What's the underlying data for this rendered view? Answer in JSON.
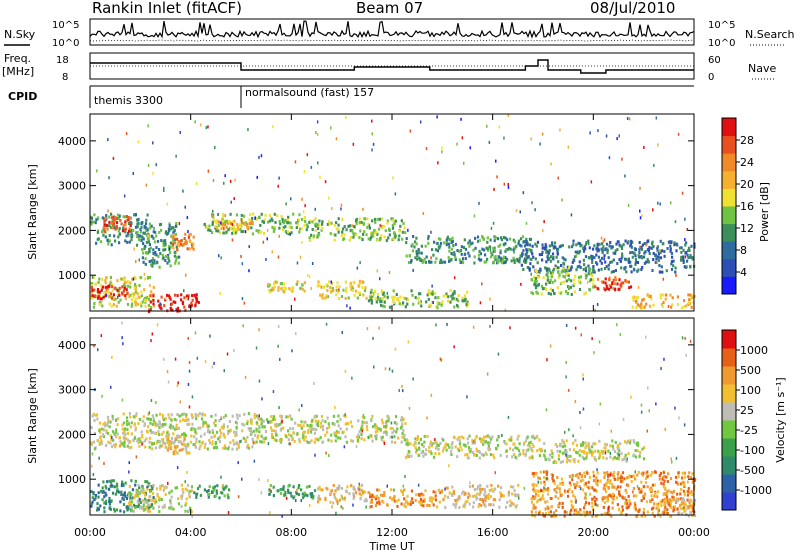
{
  "header": {
    "station": "Rankin Inlet (fitACF)",
    "beam": "Beam 07",
    "date": "08/Jul/2010"
  },
  "summary_panels": {
    "nsky_label": "N.Sky",
    "nsearch_label": "N.Search",
    "count_ticks": [
      "10^5",
      "10^0"
    ],
    "freq_label_top": "Freq.",
    "freq_label_bottom": "[MHz]",
    "freq_ticks": [
      "18",
      "8"
    ],
    "nave_label": "Nave",
    "nave_ticks": [
      "60",
      "0"
    ],
    "cpid_label": "CPID",
    "cpid_modes": [
      {
        "name": "themis 3300",
        "start": 0
      },
      {
        "name": "normalsound (fast) 157",
        "start": 6.0
      }
    ]
  },
  "colorbars": {
    "power": {
      "title": "Power [dB]",
      "ticks": [
        "28",
        "24",
        "20",
        "16",
        "12",
        "8",
        "4"
      ],
      "colors": [
        "#1a1aff",
        "#2d4fb5",
        "#2e6b9e",
        "#3a8f5a",
        "#6fc242",
        "#f0e030",
        "#f5b030",
        "#f08a28",
        "#e85020",
        "#e01010"
      ]
    },
    "velocity": {
      "title": "Velocity [m s⁻¹]",
      "ticks": [
        "1000",
        "500",
        "100",
        "25",
        "-25",
        "-100",
        "-500",
        "-1000"
      ],
      "colors": [
        "#3040d0",
        "#2e62a8",
        "#2f8a6a",
        "#3aa04a",
        "#70c840",
        "#bdbdb5",
        "#f0c030",
        "#f09a30",
        "#e86018",
        "#e01010"
      ]
    }
  },
  "axes": {
    "ylabel": "Slant Range [km]",
    "yticks": [
      "4000",
      "3000",
      "2000",
      "1000"
    ],
    "xlabel": "Time UT",
    "xticks": [
      "00:00",
      "04:00",
      "08:00",
      "12:00",
      "16:00",
      "20:00",
      "00:00"
    ]
  },
  "chart_data": {
    "type": "heatmap",
    "x_unit": "hours UT",
    "xlim": [
      0,
      24
    ],
    "y_unit": "km",
    "ylim": [
      200,
      4600
    ],
    "power_regions": [
      {
        "t": [
          0.0,
          2.3
        ],
        "r": [
          1700,
          2400
        ],
        "level": 3
      },
      {
        "t": [
          0.5,
          1.6
        ],
        "r": [
          2000,
          2350
        ],
        "level": 8
      },
      {
        "t": [
          2.0,
          3.5
        ],
        "r": [
          1200,
          2200
        ],
        "level": 3
      },
      {
        "t": [
          3.2,
          4.1
        ],
        "r": [
          1600,
          1950
        ],
        "level": 7
      },
      {
        "t": [
          4.5,
          8.5
        ],
        "r": [
          1950,
          2400
        ],
        "level": 4
      },
      {
        "t": [
          5.0,
          6.5
        ],
        "r": [
          2050,
          2250
        ],
        "level": 6
      },
      {
        "t": [
          8.5,
          12.5
        ],
        "r": [
          1800,
          2300
        ],
        "level": 4
      },
      {
        "t": [
          12.5,
          17.5
        ],
        "r": [
          1300,
          1900
        ],
        "level": 3
      },
      {
        "t": [
          17.0,
          24.0
        ],
        "r": [
          1100,
          1800
        ],
        "level": 2
      },
      {
        "t": [
          0.0,
          2.5
        ],
        "r": [
          300,
          1000
        ],
        "level": 5
      },
      {
        "t": [
          0.0,
          1.5
        ],
        "r": [
          500,
          800
        ],
        "level": 9
      },
      {
        "t": [
          2.3,
          4.3
        ],
        "r": [
          200,
          600
        ],
        "level": 9
      },
      {
        "t": [
          7.0,
          8.5
        ],
        "r": [
          650,
          900
        ],
        "level": 5
      },
      {
        "t": [
          9.0,
          11.0
        ],
        "r": [
          500,
          900
        ],
        "level": 5
      },
      {
        "t": [
          11.0,
          15.0
        ],
        "r": [
          300,
          700
        ],
        "level": 4
      },
      {
        "t": [
          17.5,
          20.0
        ],
        "r": [
          600,
          1200
        ],
        "level": 4
      },
      {
        "t": [
          20.0,
          21.5
        ],
        "r": [
          700,
          1000
        ],
        "level": 8
      },
      {
        "t": [
          21.5,
          24.0
        ],
        "r": [
          300,
          600
        ],
        "level": 6
      }
    ],
    "velocity_regions": [
      {
        "t": [
          0.0,
          6.5
        ],
        "r": [
          1700,
          2500
        ],
        "level": 5
      },
      {
        "t": [
          6.5,
          12.5
        ],
        "r": [
          1850,
          2450
        ],
        "level": 5
      },
      {
        "t": [
          12.5,
          18.0
        ],
        "r": [
          1500,
          2000
        ],
        "level": 5
      },
      {
        "t": [
          18.0,
          22.0
        ],
        "r": [
          1400,
          1900
        ],
        "level": 5
      },
      {
        "t": [
          3.0,
          4.2
        ],
        "r": [
          1600,
          2000
        ],
        "level": 6
      },
      {
        "t": [
          0.0,
          2.5
        ],
        "r": [
          300,
          1000
        ],
        "level": 2
      },
      {
        "t": [
          1.5,
          4.0
        ],
        "r": [
          300,
          900
        ],
        "level": 5
      },
      {
        "t": [
          4.0,
          5.5
        ],
        "r": [
          600,
          900
        ],
        "level": 3
      },
      {
        "t": [
          7.0,
          9.0
        ],
        "r": [
          600,
          900
        ],
        "level": 3
      },
      {
        "t": [
          9.0,
          11.0
        ],
        "r": [
          500,
          900
        ],
        "level": 6
      },
      {
        "t": [
          11.0,
          14.0
        ],
        "r": [
          400,
          800
        ],
        "level": 7
      },
      {
        "t": [
          14.0,
          17.0
        ],
        "r": [
          400,
          900
        ],
        "level": 6
      },
      {
        "t": [
          17.5,
          24.0
        ],
        "r": [
          200,
          1200
        ],
        "level": 7
      },
      {
        "t": [
          22.5,
          24.0
        ],
        "r": [
          200,
          600
        ],
        "level": 6
      }
    ]
  }
}
